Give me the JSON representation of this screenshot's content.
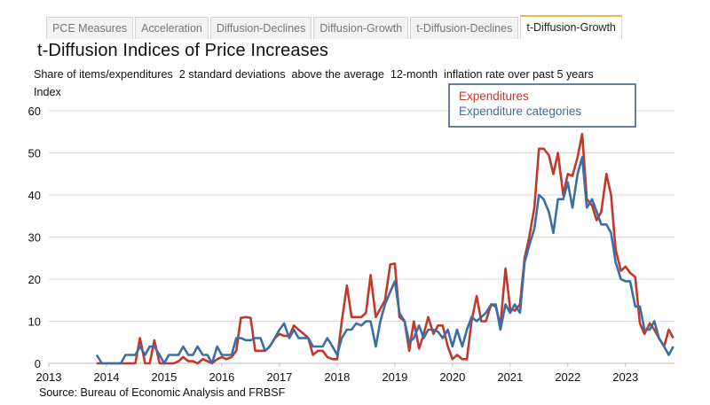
{
  "tabs": [
    {
      "label": "PCE Measures",
      "active": false
    },
    {
      "label": "Acceleration",
      "active": false
    },
    {
      "label": "Diffusion-Declines",
      "active": false
    },
    {
      "label": "Diffusion-Growth",
      "active": false
    },
    {
      "label": "t-Diffusion-Declines",
      "active": false
    },
    {
      "label": "t-Diffusion-Growth",
      "active": true
    }
  ],
  "colors": {
    "expenditures": "#c0392b",
    "expenditure_categories": "#3a6ea5",
    "grid": "#d9d9d9",
    "active_tab_accent": "#e8b84a",
    "legend_border": "#1f3864"
  },
  "chart_data": {
    "type": "line",
    "title": "t-Diffusion Indices of Price Increases",
    "subtitle": "Share of items/expenditures  2 standard deviations  above the average  12-month  inflation rate over past 5 years",
    "ylabel": "Index",
    "xlabel": "",
    "xlim": [
      2013,
      2023.85
    ],
    "ylim": [
      0,
      60
    ],
    "yticks": [
      0,
      10,
      20,
      30,
      40,
      50,
      60
    ],
    "xticks": [
      "2013",
      "2014",
      "2015",
      "2016",
      "2017",
      "2018",
      "2019",
      "2020",
      "2021",
      "2022",
      "2023"
    ],
    "grid": "horizontal",
    "legend_position": "top-right",
    "source": "Source: Bureau of Economic Analysis and FRBSF",
    "series": [
      {
        "name": "Expenditures",
        "color": "#c0392b",
        "points": [
          [
            2013.83,
            0
          ],
          [
            2013.92,
            0
          ],
          [
            2014.0,
            0
          ],
          [
            2014.08,
            0
          ],
          [
            2014.17,
            0
          ],
          [
            2014.25,
            0
          ],
          [
            2014.33,
            0
          ],
          [
            2014.42,
            0
          ],
          [
            2014.5,
            0
          ],
          [
            2014.58,
            6
          ],
          [
            2014.67,
            0
          ],
          [
            2014.75,
            0
          ],
          [
            2014.83,
            5.5
          ],
          [
            2014.92,
            0
          ],
          [
            2015.0,
            0
          ],
          [
            2015.08,
            0
          ],
          [
            2015.17,
            0
          ],
          [
            2015.25,
            0.5
          ],
          [
            2015.33,
            1.5
          ],
          [
            2015.42,
            0.5
          ],
          [
            2015.5,
            0.5
          ],
          [
            2015.58,
            0
          ],
          [
            2015.67,
            1
          ],
          [
            2015.75,
            0.5
          ],
          [
            2015.83,
            0
          ],
          [
            2015.92,
            1
          ],
          [
            2016.0,
            1.5
          ],
          [
            2016.08,
            1
          ],
          [
            2016.17,
            1.5
          ],
          [
            2016.25,
            3
          ],
          [
            2016.33,
            10.8
          ],
          [
            2016.42,
            11
          ],
          [
            2016.5,
            10.8
          ],
          [
            2016.58,
            3
          ],
          [
            2016.67,
            3
          ],
          [
            2016.75,
            3
          ],
          [
            2016.83,
            4
          ],
          [
            2016.92,
            6
          ],
          [
            2017.0,
            7
          ],
          [
            2017.08,
            6.5
          ],
          [
            2017.17,
            6.5
          ],
          [
            2017.25,
            9
          ],
          [
            2017.33,
            8
          ],
          [
            2017.42,
            7
          ],
          [
            2017.5,
            6
          ],
          [
            2017.58,
            2
          ],
          [
            2017.67,
            3
          ],
          [
            2017.75,
            3
          ],
          [
            2017.83,
            1.5
          ],
          [
            2017.92,
            1
          ],
          [
            2018.0,
            1
          ],
          [
            2018.08,
            10
          ],
          [
            2018.17,
            18.5
          ],
          [
            2018.25,
            11
          ],
          [
            2018.33,
            11
          ],
          [
            2018.42,
            11
          ],
          [
            2018.5,
            12
          ],
          [
            2018.58,
            21
          ],
          [
            2018.67,
            11
          ],
          [
            2018.75,
            13
          ],
          [
            2018.83,
            15
          ],
          [
            2018.92,
            23.5
          ],
          [
            2019.0,
            23.7
          ],
          [
            2019.08,
            11
          ],
          [
            2019.17,
            10
          ],
          [
            2019.25,
            3
          ],
          [
            2019.33,
            10
          ],
          [
            2019.42,
            3.5
          ],
          [
            2019.5,
            7
          ],
          [
            2019.58,
            11
          ],
          [
            2019.67,
            7
          ],
          [
            2019.75,
            9
          ],
          [
            2019.83,
            9
          ],
          [
            2019.92,
            4
          ],
          [
            2020.0,
            1
          ],
          [
            2020.08,
            2
          ],
          [
            2020.17,
            1
          ],
          [
            2020.25,
            1
          ],
          [
            2020.33,
            10
          ],
          [
            2020.42,
            16
          ],
          [
            2020.5,
            10
          ],
          [
            2020.58,
            10
          ],
          [
            2020.67,
            14
          ],
          [
            2020.75,
            13.5
          ],
          [
            2020.83,
            9
          ],
          [
            2020.92,
            22.5
          ],
          [
            2021.0,
            13
          ],
          [
            2021.08,
            12.5
          ],
          [
            2021.17,
            14
          ],
          [
            2021.25,
            25
          ],
          [
            2021.33,
            30
          ],
          [
            2021.42,
            37
          ],
          [
            2021.5,
            51
          ],
          [
            2021.58,
            51
          ],
          [
            2021.67,
            49.5
          ],
          [
            2021.75,
            45
          ],
          [
            2021.83,
            50
          ],
          [
            2021.92,
            40
          ],
          [
            2022.0,
            45
          ],
          [
            2022.08,
            44.5
          ],
          [
            2022.17,
            49
          ],
          [
            2022.25,
            54.5
          ],
          [
            2022.33,
            39
          ],
          [
            2022.42,
            37.5
          ],
          [
            2022.5,
            34
          ],
          [
            2022.58,
            36
          ],
          [
            2022.67,
            45
          ],
          [
            2022.75,
            40
          ],
          [
            2022.83,
            27
          ],
          [
            2022.92,
            22
          ],
          [
            2023.0,
            23
          ],
          [
            2023.08,
            21.5
          ],
          [
            2023.17,
            20.5
          ],
          [
            2023.25,
            9.5
          ],
          [
            2023.33,
            7
          ],
          [
            2023.42,
            9.5
          ],
          [
            2023.5,
            8
          ],
          [
            2023.58,
            6
          ],
          [
            2023.67,
            4
          ],
          [
            2023.75,
            8
          ],
          [
            2023.83,
            6
          ]
        ]
      },
      {
        "name": "Expenditure categories",
        "color": "#3a6ea5",
        "points": [
          [
            2013.83,
            2
          ],
          [
            2013.92,
            0
          ],
          [
            2014.0,
            0
          ],
          [
            2014.08,
            0
          ],
          [
            2014.17,
            0
          ],
          [
            2014.25,
            0
          ],
          [
            2014.33,
            2
          ],
          [
            2014.42,
            2
          ],
          [
            2014.5,
            2
          ],
          [
            2014.58,
            4
          ],
          [
            2014.67,
            2
          ],
          [
            2014.75,
            4
          ],
          [
            2014.83,
            4
          ],
          [
            2014.92,
            2
          ],
          [
            2015.0,
            0
          ],
          [
            2015.08,
            2
          ],
          [
            2015.17,
            2
          ],
          [
            2015.25,
            2
          ],
          [
            2015.33,
            4
          ],
          [
            2015.42,
            2
          ],
          [
            2015.5,
            2
          ],
          [
            2015.58,
            4
          ],
          [
            2015.67,
            2
          ],
          [
            2015.75,
            2
          ],
          [
            2015.83,
            0
          ],
          [
            2015.92,
            4
          ],
          [
            2016.0,
            2
          ],
          [
            2016.08,
            2
          ],
          [
            2016.17,
            2
          ],
          [
            2016.25,
            6
          ],
          [
            2016.33,
            6
          ],
          [
            2016.42,
            5.5
          ],
          [
            2016.5,
            5.5
          ],
          [
            2016.58,
            6
          ],
          [
            2016.67,
            6
          ],
          [
            2016.75,
            3
          ],
          [
            2016.83,
            4
          ],
          [
            2016.92,
            6
          ],
          [
            2017.0,
            8
          ],
          [
            2017.08,
            9.5
          ],
          [
            2017.17,
            6
          ],
          [
            2017.25,
            8
          ],
          [
            2017.33,
            6
          ],
          [
            2017.42,
            6
          ],
          [
            2017.5,
            6
          ],
          [
            2017.58,
            4
          ],
          [
            2017.67,
            4
          ],
          [
            2017.75,
            4
          ],
          [
            2017.83,
            6
          ],
          [
            2017.92,
            4
          ],
          [
            2018.0,
            2
          ],
          [
            2018.08,
            6
          ],
          [
            2018.17,
            8
          ],
          [
            2018.25,
            8
          ],
          [
            2018.33,
            9.5
          ],
          [
            2018.42,
            9
          ],
          [
            2018.5,
            10
          ],
          [
            2018.58,
            10
          ],
          [
            2018.67,
            4
          ],
          [
            2018.75,
            10
          ],
          [
            2018.83,
            14
          ],
          [
            2018.92,
            17
          ],
          [
            2019.0,
            19.5
          ],
          [
            2019.08,
            12
          ],
          [
            2019.17,
            10
          ],
          [
            2019.25,
            5
          ],
          [
            2019.33,
            6
          ],
          [
            2019.42,
            9
          ],
          [
            2019.5,
            6
          ],
          [
            2019.58,
            8
          ],
          [
            2019.67,
            8
          ],
          [
            2019.75,
            7.5
          ],
          [
            2019.83,
            6
          ],
          [
            2019.92,
            8
          ],
          [
            2020.0,
            4
          ],
          [
            2020.08,
            8
          ],
          [
            2020.17,
            4
          ],
          [
            2020.25,
            8
          ],
          [
            2020.33,
            11
          ],
          [
            2020.42,
            10
          ],
          [
            2020.5,
            11
          ],
          [
            2020.58,
            12
          ],
          [
            2020.67,
            14
          ],
          [
            2020.75,
            14
          ],
          [
            2020.83,
            8
          ],
          [
            2020.92,
            14
          ],
          [
            2021.0,
            12
          ],
          [
            2021.08,
            14
          ],
          [
            2021.17,
            12
          ],
          [
            2021.25,
            24
          ],
          [
            2021.33,
            28
          ],
          [
            2021.42,
            32
          ],
          [
            2021.5,
            40
          ],
          [
            2021.58,
            39
          ],
          [
            2021.67,
            36
          ],
          [
            2021.75,
            31
          ],
          [
            2021.83,
            39
          ],
          [
            2021.92,
            39
          ],
          [
            2022.0,
            43
          ],
          [
            2022.08,
            37
          ],
          [
            2022.17,
            45
          ],
          [
            2022.25,
            49
          ],
          [
            2022.33,
            37
          ],
          [
            2022.42,
            39
          ],
          [
            2022.5,
            36
          ],
          [
            2022.58,
            33
          ],
          [
            2022.67,
            33
          ],
          [
            2022.75,
            31
          ],
          [
            2022.83,
            24
          ],
          [
            2022.92,
            20
          ],
          [
            2023.0,
            19.5
          ],
          [
            2023.08,
            19.5
          ],
          [
            2023.17,
            13.5
          ],
          [
            2023.25,
            13.5
          ],
          [
            2023.33,
            8
          ],
          [
            2023.42,
            8
          ],
          [
            2023.5,
            10
          ],
          [
            2023.58,
            6
          ],
          [
            2023.67,
            4
          ],
          [
            2023.75,
            2
          ],
          [
            2023.83,
            4
          ]
        ]
      }
    ]
  }
}
